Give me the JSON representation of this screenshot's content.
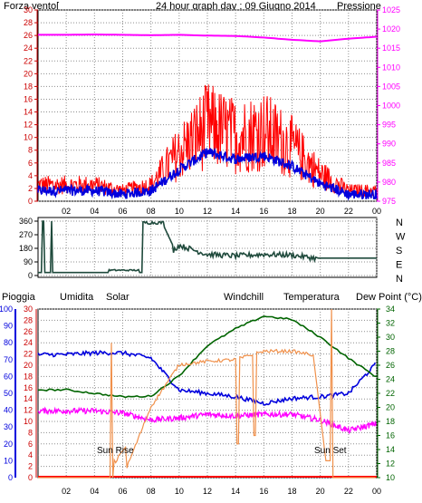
{
  "header": {
    "left_title": "Forza vento[",
    "center_title": "24 hour graph day : 09 Giugno 2014",
    "right_title": "Pressione"
  },
  "x_ticks": [
    "02",
    "04",
    "06",
    "08",
    "10",
    "12",
    "14",
    "16",
    "18",
    "20",
    "22",
    "00"
  ],
  "panel_wind": {
    "left_axis_ticks": [
      "0",
      "2",
      "4",
      "6",
      "8",
      "10",
      "12",
      "14",
      "16",
      "18",
      "20",
      "22",
      "24",
      "26",
      "28",
      "30"
    ],
    "right_axis_ticks": [
      "975",
      "980",
      "985",
      "990",
      "995",
      "1000",
      "1005",
      "1010",
      "1015",
      "1020",
      "1025"
    ]
  },
  "panel_direction": {
    "left_axis_ticks": [
      "0",
      "90",
      "180",
      "270",
      "360"
    ],
    "right_labels": [
      "N",
      "W",
      "S",
      "E",
      "N"
    ]
  },
  "panel_weather": {
    "labels": {
      "pioggia": "Pioggia",
      "umidita": "Umidita",
      "solar": "Solar",
      "windchill": "Windchill",
      "temperatura": "Temperatura",
      "dewpoint": "Dew Point (°C)"
    },
    "rain_ticks": [
      "0",
      "10",
      "20",
      "30",
      "40",
      "50",
      "60",
      "70",
      "80",
      "90",
      "100"
    ],
    "humidity_ticks": [
      "0",
      "2",
      "4",
      "6",
      "8",
      "10",
      "12",
      "14",
      "16",
      "18",
      "20",
      "22",
      "24",
      "26",
      "28",
      "30"
    ],
    "temp_ticks": [
      "10",
      "12",
      "14",
      "16",
      "18",
      "20",
      "22",
      "24",
      "26",
      "28",
      "30",
      "32",
      "34"
    ],
    "sunrise_label": "Sun Rise",
    "sunset_label": "Sun Set"
  },
  "colors": {
    "frame": "#000000",
    "grid": "#8f8f8f",
    "wind_gust": "#ff0000",
    "wind_avg": "#0000dd",
    "pressure": "#ff00ff",
    "direction": "#1f4a3c",
    "humidity": "#0000dd",
    "solar": "#f0904a",
    "windchill": "#006400",
    "dewpoint": "#ff00ff",
    "rain": "#ff0000",
    "title_red": "#cc0000",
    "title_blue": "#2a2ae0",
    "solar_label": "#b07a00",
    "windchill_label": "#2a6e6e",
    "temp_label": "#008000"
  },
  "chart_data": [
    {
      "type": "line",
      "title": "24 hour graph day : 09 Giugno 2014",
      "x": [
        "02",
        "04",
        "06",
        "08",
        "10",
        "12",
        "14",
        "16",
        "18",
        "20",
        "22",
        "00"
      ],
      "ylim_left": [
        0,
        30
      ],
      "ylim_right": [
        975,
        1025
      ],
      "series": [
        {
          "name": "Forza vento[",
          "values": [
            3,
            3,
            2,
            3,
            9,
            14,
            12,
            13,
            10,
            5,
            2,
            2
          ]
        },
        {
          "name": "Pressione",
          "values": [
            1018.5,
            1018.6,
            1018.5,
            1018.4,
            1018.5,
            1018.3,
            1018.2,
            1017.8,
            1017.2,
            1016.8,
            1017.5,
            1018
          ]
        }
      ]
    },
    {
      "type": "line",
      "x": [
        "02",
        "04",
        "06",
        "08",
        "10",
        "12",
        "14",
        "16",
        "18",
        "20",
        "22",
        "00"
      ],
      "ylim": [
        0,
        360
      ],
      "values": [
        20,
        20,
        25,
        35,
        200,
        140,
        130,
        140,
        135,
        110,
        115,
        115
      ]
    },
    {
      "type": "line",
      "x": [
        "02",
        "04",
        "06",
        "08",
        "10",
        "12",
        "14",
        "16",
        "18",
        "20",
        "22",
        "00"
      ],
      "ylim_rain": [
        0,
        100
      ],
      "ylim_humidity": [
        0,
        30
      ],
      "ylim_temp": [
        10,
        34
      ],
      "series": [
        {
          "name": "Umidita",
          "values": [
            73,
            74,
            74,
            71,
            52,
            50,
            48,
            44,
            47,
            48,
            50,
            68
          ]
        },
        {
          "name": "Solar",
          "values": [
            0,
            0,
            0,
            42,
            67,
            69,
            70,
            75,
            75,
            72,
            5,
            0
          ]
        },
        {
          "name": "Windchill",
          "values": [
            22.5,
            22,
            21.5,
            21.6,
            24.5,
            28.8,
            31.2,
            33,
            32.5,
            30,
            27,
            24.3
          ]
        },
        {
          "name": "Dew Point (°C)",
          "values": [
            19.5,
            19.5,
            19.2,
            18.2,
            18.5,
            19,
            18.8,
            19,
            19,
            18.2,
            16.7,
            17.7
          ]
        },
        {
          "name": "Pioggia",
          "values": [
            0,
            0,
            0,
            0,
            0,
            0,
            0,
            0,
            0,
            0,
            0,
            0
          ]
        }
      ]
    }
  ]
}
